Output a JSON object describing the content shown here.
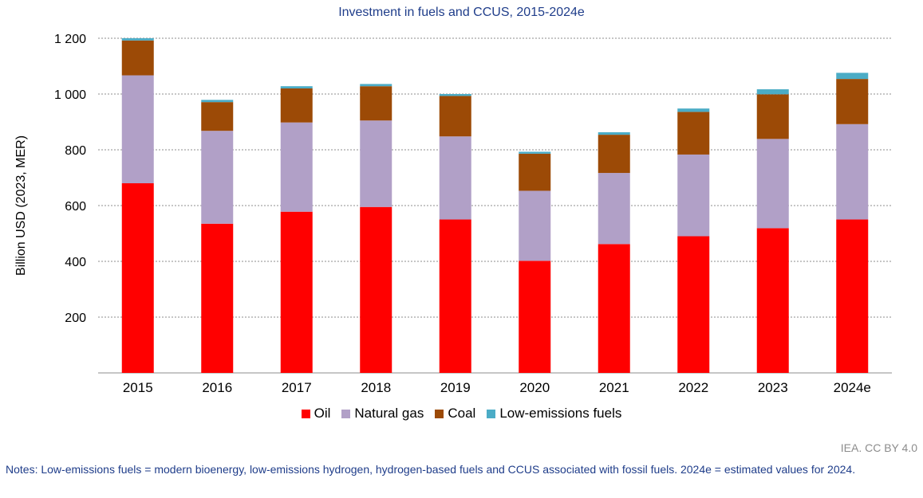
{
  "chart_data": {
    "type": "bar",
    "stacked": true,
    "title": "Investment in fuels and CCUS, 2015-2024e",
    "xlabel": "",
    "ylabel": "Billion USD (2023, MER)",
    "ylim": [
      0,
      1200
    ],
    "yticks": [
      200,
      400,
      600,
      800,
      1000,
      1200
    ],
    "ytick_labels": [
      "200",
      "400",
      "600",
      "800",
      "1 000",
      "1 200"
    ],
    "grid": true,
    "legend_position": "bottom",
    "categories": [
      "2015",
      "2016",
      "2017",
      "2018",
      "2019",
      "2020",
      "2021",
      "2022",
      "2023",
      "2024e"
    ],
    "series": [
      {
        "name": "Oil",
        "color": "#ff0000",
        "values": [
          680,
          535,
          578,
          595,
          550,
          402,
          462,
          490,
          519,
          550
        ]
      },
      {
        "name": "Natural gas",
        "color": "#b1a0c7",
        "values": [
          387,
          333,
          320,
          310,
          298,
          251,
          255,
          293,
          320,
          342
        ]
      },
      {
        "name": "Coal",
        "color": "#9c4a06",
        "values": [
          125,
          103,
          122,
          123,
          145,
          133,
          137,
          153,
          160,
          162
        ]
      },
      {
        "name": "Low-emissions fuels",
        "color": "#4bacc6",
        "values": [
          8,
          8,
          8,
          8,
          7,
          7,
          9,
          12,
          18,
          22
        ]
      }
    ]
  },
  "credit": "IEA. CC BY 4.0",
  "notes": "Notes: Low-emissions fuels = modern bioenergy, low-emissions hydrogen, hydrogen-based fuels and CCUS associated with fossil fuels. 2024e = estimated values for 2024."
}
